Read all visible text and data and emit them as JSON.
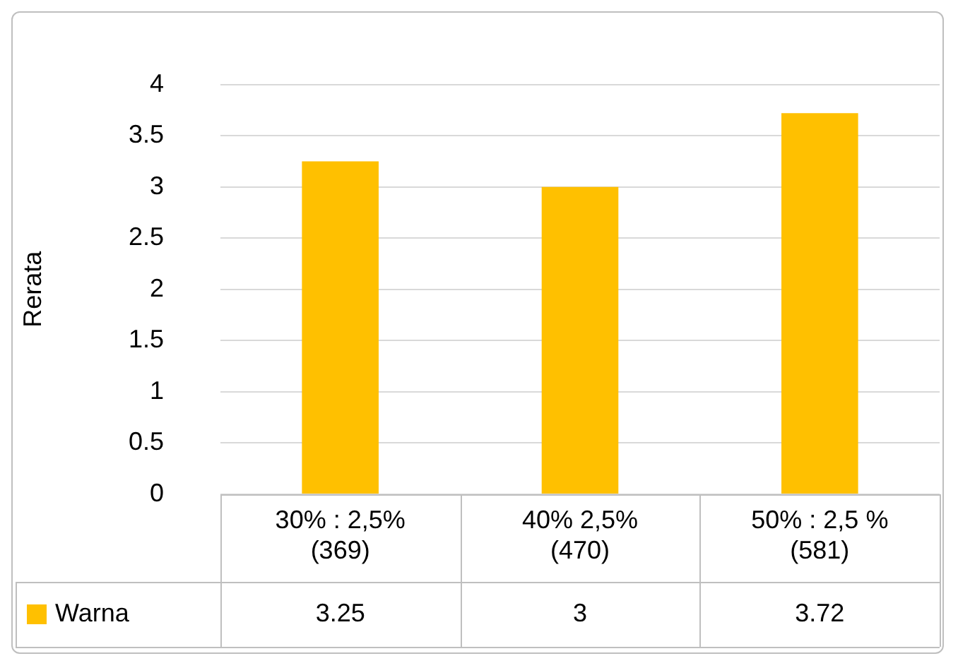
{
  "chart_data": {
    "type": "bar",
    "ylabel": "Rerata",
    "categories": [
      "30% : 2,5% (369)",
      "40% 2,5% (470)",
      "50% : 2,5 % (581)"
    ],
    "series": [
      {
        "name": "Warna",
        "color": "#ffc000",
        "values": [
          3.25,
          3,
          3.72
        ]
      }
    ],
    "ylim": [
      0,
      4
    ],
    "yticks": [
      0,
      0.5,
      1,
      1.5,
      2,
      2.5,
      3,
      3.5,
      4
    ],
    "grid": "y",
    "legend": "bottom",
    "data_labels": true
  }
}
